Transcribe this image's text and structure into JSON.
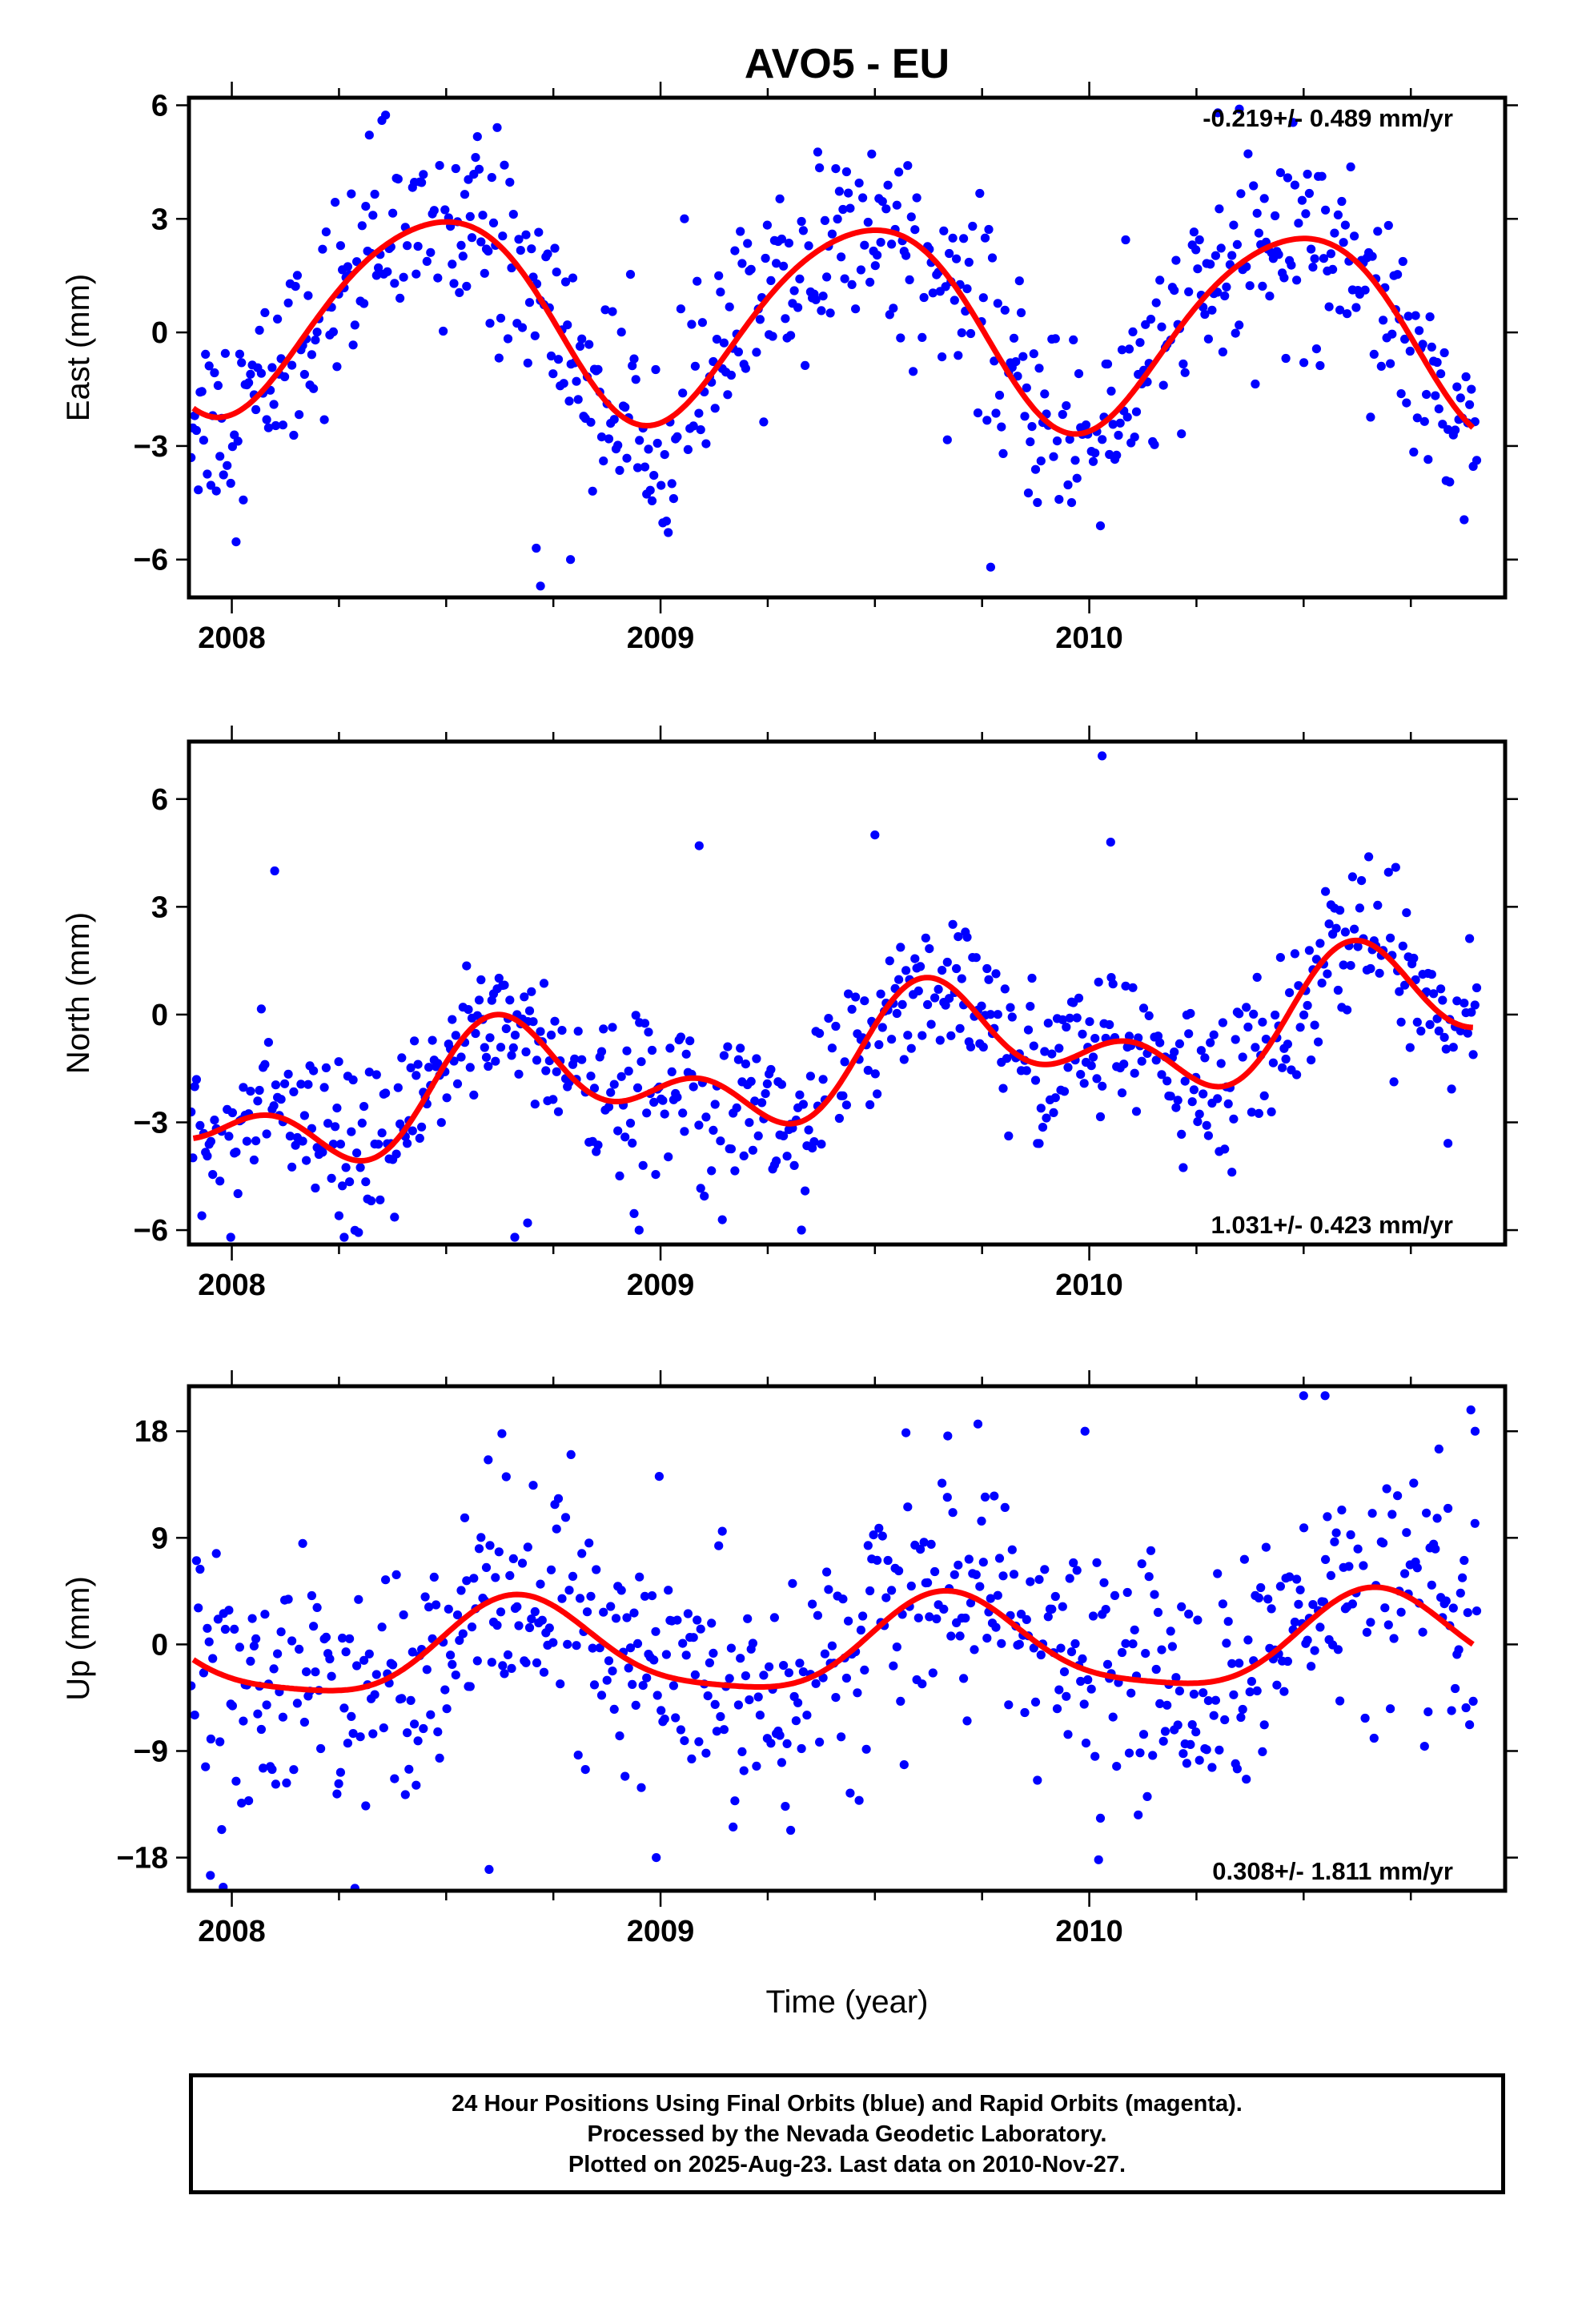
{
  "chart_data": {
    "type": "scatter",
    "title": "AVO5 - EU",
    "xlabel": "Time (year)",
    "xlim": [
      2007.9,
      2010.97
    ],
    "x_ticks": [
      "2008",
      "2009",
      "2010"
    ],
    "point_color": "#0000ff",
    "fit_color": "#ff0000",
    "panels": [
      {
        "ylabel": "East (mm)",
        "ylim": [
          -7,
          6.2
        ],
        "y_ticks": [
          {
            "v": 6,
            "t": "6"
          },
          {
            "v": 3,
            "t": "3"
          },
          {
            "v": 0,
            "t": "0"
          },
          {
            "v": -3,
            "t": "−3"
          },
          {
            "v": -6,
            "t": "−6"
          }
        ],
        "rate": "-0.219+/- 0.489 mm/yr",
        "rate_position": "top-right",
        "fit": {
          "offset": 0.3,
          "trend": -0.219,
          "annual_cos": -2.6,
          "annual_sin": 0.35,
          "semi_cos": -0.2,
          "semi_sin": 0.2,
          "noise_sd": 1.3
        },
        "outliers": [
          [
            2008.72,
            -6.7
          ],
          [
            2008.71,
            -5.7
          ],
          [
            2008.79,
            -6.0
          ],
          [
            2009.77,
            -6.2
          ],
          [
            2010.35,
            5.9
          ],
          [
            2010.3,
            5.8
          ],
          [
            2008.35,
            5.6
          ]
        ]
      },
      {
        "ylabel": "North (mm)",
        "ylim": [
          -6.4,
          7.6
        ],
        "y_ticks": [
          {
            "v": 6,
            "t": "6"
          },
          {
            "v": 3,
            "t": "3"
          },
          {
            "v": 0,
            "t": "0"
          },
          {
            "v": -3,
            "t": "−3"
          },
          {
            "v": -6,
            "t": "−6"
          }
        ],
        "rate": "1.031+/- 0.423 mm/yr",
        "rate_position": "bottom-right",
        "fit": {
          "offset": -1.2,
          "trend": 1.031,
          "annual_cos": -0.6,
          "annual_sin": -1.1,
          "semi_cos": 0.3,
          "semi_sin": 0.9,
          "noise_sd": 1.1
        },
        "outliers": [
          [
            2010.03,
            7.2
          ],
          [
            2008.1,
            4.0
          ],
          [
            2009.09,
            4.7
          ],
          [
            2009.5,
            5.0
          ],
          [
            2010.05,
            4.8
          ],
          [
            2008.66,
            -6.2
          ],
          [
            2008.69,
            -5.8
          ],
          [
            2008.95,
            -6.0
          ],
          [
            2007.93,
            -5.6
          ],
          [
            2008.25,
            -5.6
          ]
        ]
      },
      {
        "ylabel": "Up (mm)",
        "ylim": [
          -20.8,
          21.8
        ],
        "y_ticks": [
          {
            "v": 18,
            "t": "18"
          },
          {
            "v": 9,
            "t": "9"
          },
          {
            "v": 0,
            "t": "0"
          },
          {
            "v": -9,
            "t": "−9"
          },
          {
            "v": -18,
            "t": "−18"
          }
        ],
        "rate": "0.308+/- 1.811 mm/yr",
        "rate_position": "bottom-right",
        "fit": {
          "offset": -0.3,
          "trend": 0.308,
          "annual_cos": -1.8,
          "annual_sin": -3.5,
          "semi_cos": -0.3,
          "semi_sin": 0.8,
          "noise_sd": 5.0
        },
        "outliers": [
          [
            2007.98,
            -20.5
          ],
          [
            2007.95,
            -19.5
          ],
          [
            2010.55,
            21.0
          ],
          [
            2010.5,
            21.0
          ],
          [
            2010.89,
            19.8
          ],
          [
            2010.9,
            18.0
          ],
          [
            2008.63,
            17.8
          ],
          [
            2009.67,
            17.6
          ],
          [
            2009.99,
            18.0
          ],
          [
            2008.6,
            -19.0
          ],
          [
            2008.99,
            -18.0
          ]
        ]
      }
    ]
  },
  "footer": {
    "line1": "24 Hour Positions Using Final Orbits (blue) and Rapid Orbits (magenta).",
    "line2": "Processed by the Nevada Geodetic Laboratory.",
    "line3": "Plotted on 2025-Aug-23. Last data on 2010-Nov-27."
  }
}
